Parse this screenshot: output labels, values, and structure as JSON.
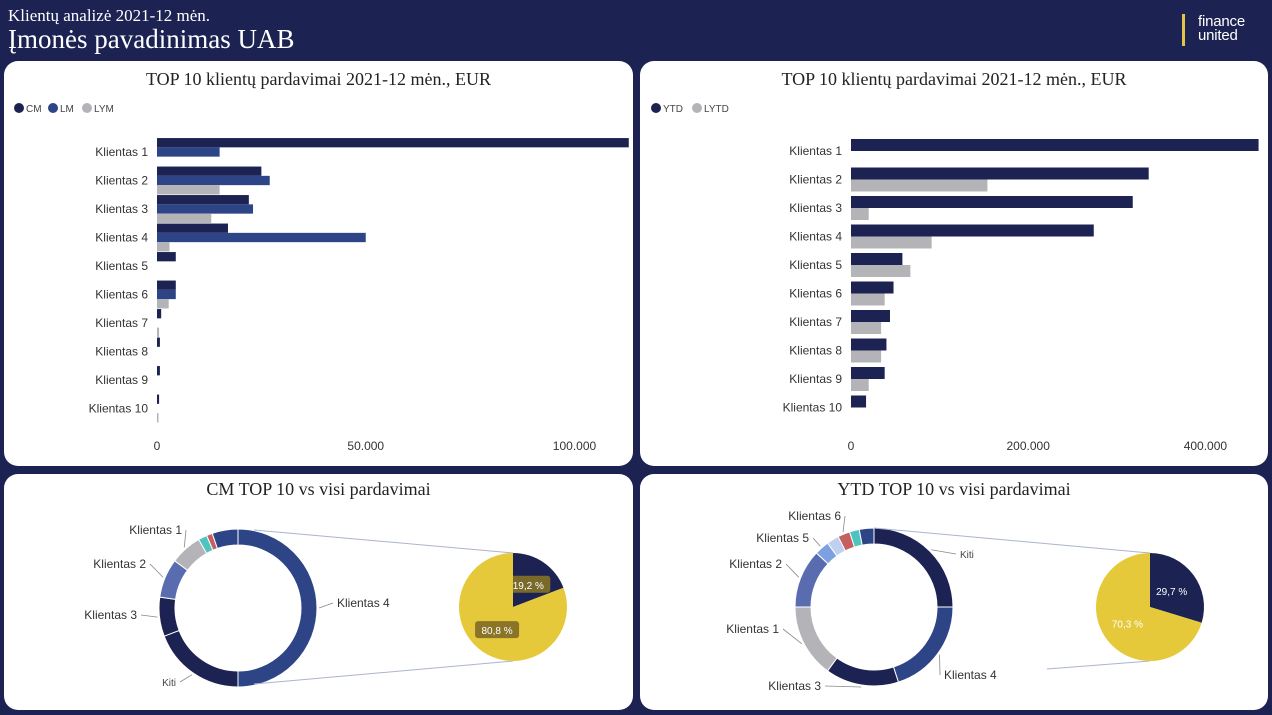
{
  "header": {
    "subtitle": "Klientų analizė 2021-12 mėn.",
    "title": "Įmonės pavadinimas UAB",
    "logo_line1": "finance",
    "logo_line2": "united"
  },
  "colors": {
    "navy": "#1c2352",
    "blue": "#2d4586",
    "grey": "#b4b4b8",
    "yellow": "#e6c93a",
    "accent": "#e2c548"
  },
  "chart_data": [
    {
      "type": "bar",
      "orientation": "horizontal",
      "title": "TOP 10 klientų pardavimai 2021-12 mėn., EUR",
      "legend_position": "top-left",
      "categories": [
        "Klientas 1",
        "Klientas 2",
        "Klientas 3",
        "Klientas 4",
        "Klientas 5",
        "Klientas 6",
        "Klientas 7",
        "Klientas 8",
        "Klientas 9",
        "Klientas 10"
      ],
      "series": [
        {
          "name": "CM",
          "color": "#1c2352",
          "values": [
            113000,
            25000,
            22000,
            17000,
            4500,
            4500,
            1000,
            700,
            700,
            500
          ]
        },
        {
          "name": "LM",
          "color": "#2d4586",
          "values": [
            15000,
            27000,
            23000,
            50000,
            0,
            4500,
            0,
            0,
            0,
            0
          ]
        },
        {
          "name": "LYM",
          "color": "#b4b4b8",
          "values": [
            0,
            15000,
            13000,
            3000,
            0,
            2800,
            500,
            0,
            0,
            300
          ]
        }
      ],
      "xlim": [
        0,
        120000
      ],
      "xticks": [
        "0",
        "50.000",
        "100.000"
      ],
      "xtick_values": [
        0,
        50000,
        100000
      ]
    },
    {
      "type": "bar",
      "orientation": "horizontal",
      "title": "TOP 10 klientų pardavimai 2021-12 mėn., EUR",
      "legend_position": "top-left",
      "categories": [
        "Klientas 1",
        "Klientas 2",
        "Klientas 3",
        "Klientas 4",
        "Klientas 5",
        "Klientas 6",
        "Klientas 7",
        "Klientas 8",
        "Klientas 9",
        "Klientas 10"
      ],
      "series": [
        {
          "name": "YTD",
          "color": "#1c2352",
          "values": [
            460000,
            336000,
            318000,
            274000,
            58000,
            48000,
            44000,
            40000,
            38000,
            17000
          ]
        },
        {
          "name": "LYTD",
          "color": "#b4b4b8",
          "values": [
            0,
            154000,
            20000,
            91000,
            67000,
            38000,
            34000,
            34000,
            20000,
            0
          ]
        }
      ],
      "xlim": [
        0,
        500000
      ],
      "xticks": [
        "0",
        "200.000",
        "400.000"
      ],
      "xtick_values": [
        0,
        200000,
        400000
      ]
    },
    {
      "type": "pie",
      "title": "CM TOP 10 vs visi pardavimai",
      "donut": [
        {
          "label": "Klientas 4",
          "value": 50,
          "color": "#2d4586"
        },
        {
          "label": "Kiti",
          "value": 19.2,
          "color": "#1c2352"
        },
        {
          "label": "Klientas 3",
          "value": 8,
          "color": "#1c2352"
        },
        {
          "label": "Klientas 2",
          "value": 8,
          "color": "#5a6cb0"
        },
        {
          "label": "Klientas 1",
          "value": 6.5,
          "color": "#b4b4b8"
        },
        {
          "label": "",
          "value": 1.8,
          "color": "#4fc3bf"
        },
        {
          "label": "",
          "value": 1.2,
          "color": "#c46060"
        },
        {
          "label": "",
          "value": 5.3,
          "color": "#2d4586"
        }
      ],
      "pie": [
        {
          "label": "19,2 %",
          "value": 19.2,
          "color": "#1c2352"
        },
        {
          "label": "80,8 %",
          "value": 80.8,
          "color": "#e6c93a"
        }
      ]
    },
    {
      "type": "pie",
      "title": "YTD TOP 10 vs visi pardavimai",
      "donut": [
        {
          "label": "Kiti",
          "value": 25,
          "color": "#1c2352"
        },
        {
          "label": "Klientas 4",
          "value": 20,
          "color": "#2d4586"
        },
        {
          "label": "Klientas 3",
          "value": 15,
          "color": "#1c2352"
        },
        {
          "label": "Klientas 1",
          "value": 15,
          "color": "#b4b4b8"
        },
        {
          "label": "Klientas 2",
          "value": 12,
          "color": "#5a6cb0"
        },
        {
          "label": "Klientas 5",
          "value": 3,
          "color": "#7da0e0"
        },
        {
          "label": "",
          "value": 2.5,
          "color": "#c0d0f0"
        },
        {
          "label": "Klientas 6",
          "value": 2.5,
          "color": "#c46060"
        },
        {
          "label": "",
          "value": 2,
          "color": "#4fc3bf"
        },
        {
          "label": "",
          "value": 3,
          "color": "#2d4586"
        }
      ],
      "pie": [
        {
          "label": "29,7 %",
          "value": 29.7,
          "color": "#1c2352"
        },
        {
          "label": "70,3 %",
          "value": 70.3,
          "color": "#e6c93a"
        }
      ]
    }
  ]
}
